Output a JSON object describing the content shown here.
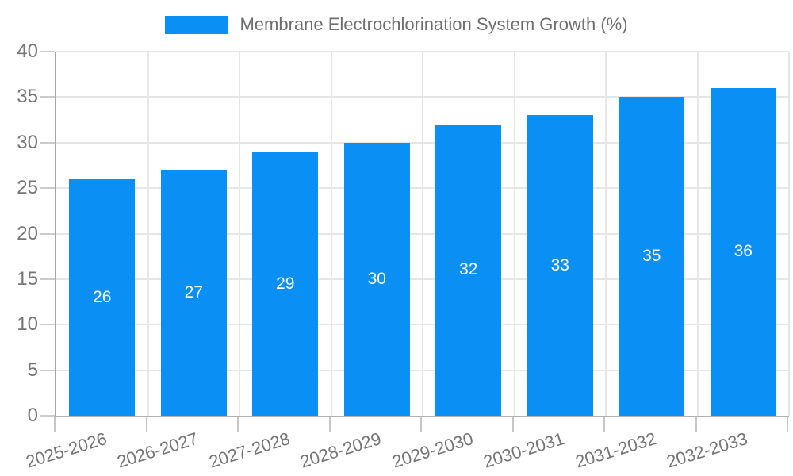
{
  "chart_data": {
    "type": "bar",
    "title": "Membrane Electrochlorination System Growth (%)",
    "categories": [
      "2025-2026",
      "2026-2027",
      "2027-2028",
      "2028-2029",
      "2029-2030",
      "2030-2031",
      "2031-2032",
      "2032-2033"
    ],
    "values": [
      26,
      27,
      29,
      30,
      32,
      33,
      35,
      36
    ],
    "xlabel": "",
    "ylabel": "",
    "ylim": [
      0,
      40
    ],
    "yticks": [
      0,
      5,
      10,
      15,
      20,
      25,
      30,
      35,
      40
    ],
    "grid": true,
    "legend_position": "top-center",
    "bar_labels_inside": true,
    "colors": {
      "bar": "#0a90f4",
      "bar_value_text": "#ffffff",
      "axis_text": "#757575",
      "legend_text": "#6e6e6e",
      "grid_line": "#e6e6e6",
      "axis_line": "#aaaaaa",
      "tick_line": "#cccccc",
      "background": "#ffffff"
    }
  }
}
